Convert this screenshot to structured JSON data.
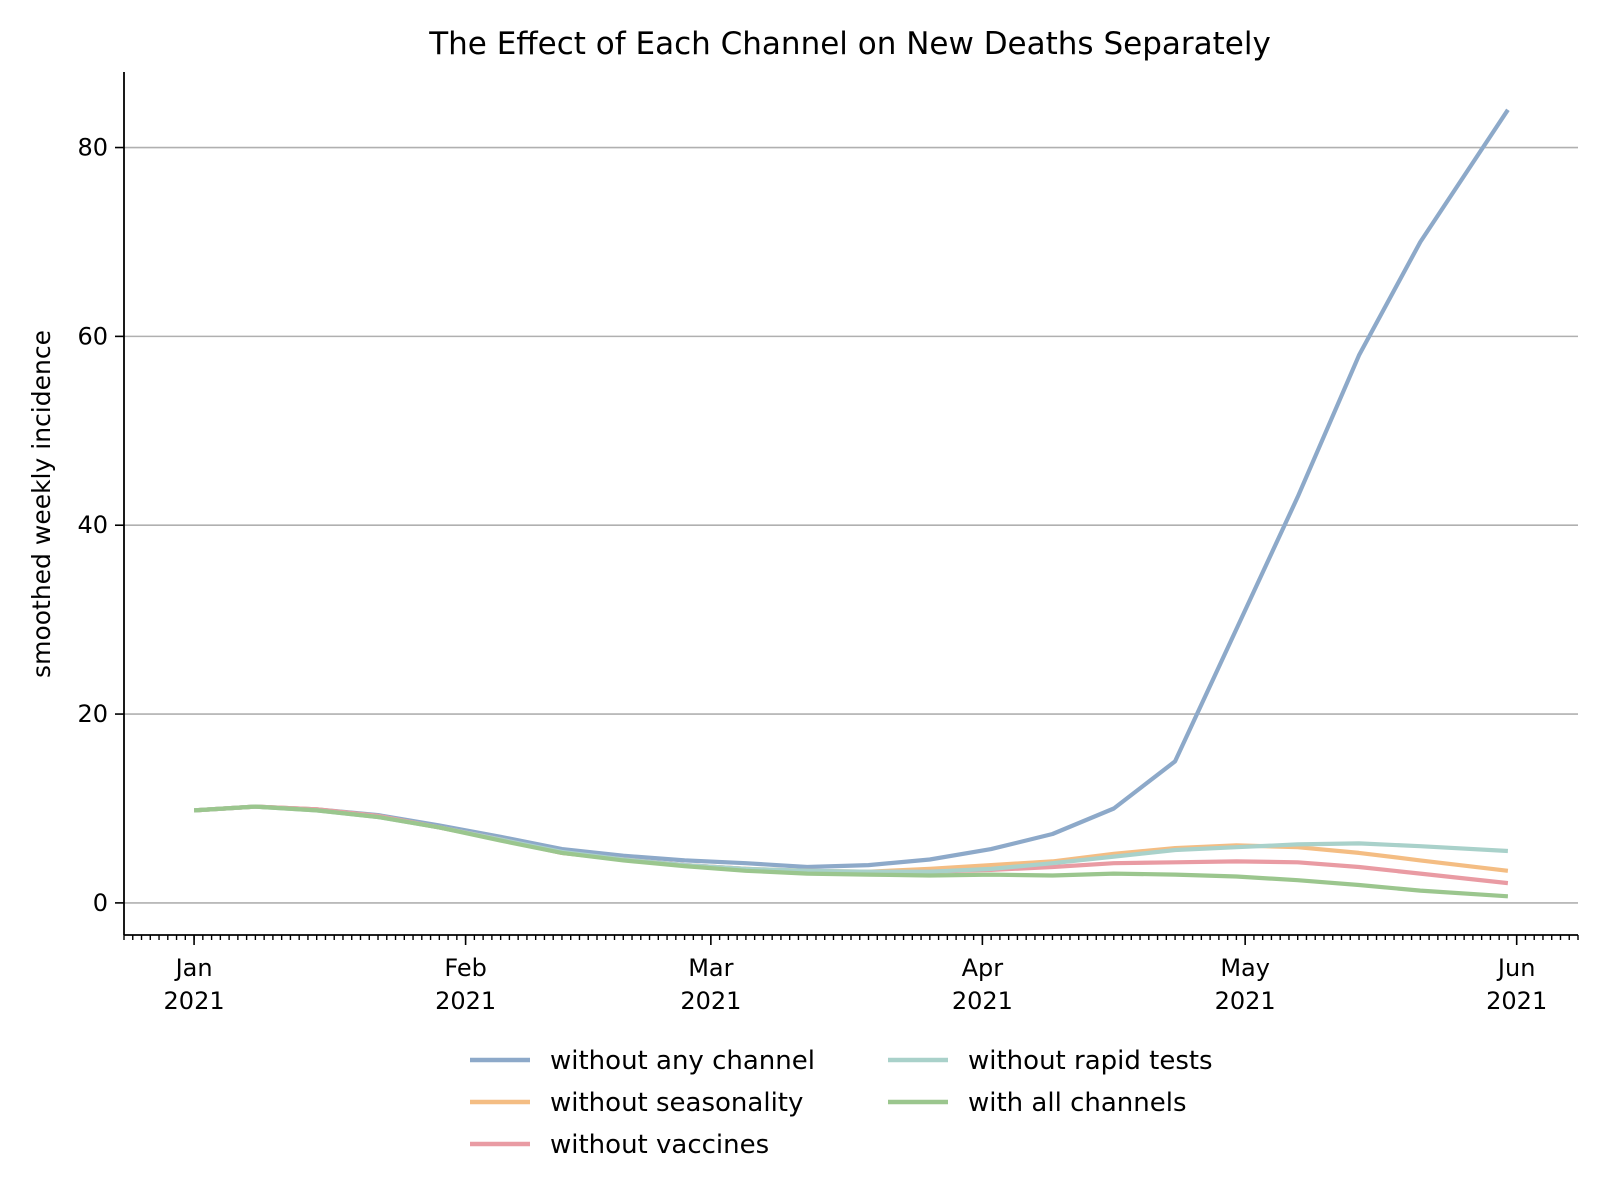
{
  "chart_data": {
    "type": "line",
    "title": "The Effect of Each Channel on New Deaths Separately",
    "xlabel": "",
    "ylabel": "smoothed weekly incidence",
    "ylim": [
      -3.4,
      88
    ],
    "yticks": [
      0,
      20,
      40,
      60,
      80
    ],
    "xlim": [
      "2020-12-24",
      "2021-06-08"
    ],
    "xticks": [
      {
        "date": "2021-01-01",
        "month": "Jan",
        "year": "2021"
      },
      {
        "date": "2021-02-01",
        "month": "Feb",
        "year": "2021"
      },
      {
        "date": "2021-03-01",
        "month": "Mar",
        "year": "2021"
      },
      {
        "date": "2021-04-01",
        "month": "Apr",
        "year": "2021"
      },
      {
        "date": "2021-05-01",
        "month": "May",
        "year": "2021"
      },
      {
        "date": "2021-06-01",
        "month": "Jun",
        "year": "2021"
      }
    ],
    "grid": "y",
    "legend_position": "bottom-center",
    "x": [
      "2021-01-01",
      "2021-01-08",
      "2021-01-15",
      "2021-01-22",
      "2021-01-29",
      "2021-02-05",
      "2021-02-12",
      "2021-02-19",
      "2021-02-26",
      "2021-03-05",
      "2021-03-12",
      "2021-03-19",
      "2021-03-26",
      "2021-04-02",
      "2021-04-09",
      "2021-04-16",
      "2021-04-23",
      "2021-04-30",
      "2021-05-07",
      "2021-05-14",
      "2021-05-21",
      "2021-05-31"
    ],
    "series": [
      {
        "name": "without any channel",
        "color": "#8da9c9",
        "values": [
          9.8,
          10.2,
          9.9,
          9.3,
          8.2,
          7.0,
          5.7,
          5.0,
          4.5,
          4.2,
          3.8,
          4.0,
          4.6,
          5.7,
          7.3,
          10.0,
          15.0,
          29.0,
          43.0,
          58.0,
          70.0,
          84.0
        ]
      },
      {
        "name": "without seasonality",
        "color": "#f4bd83",
        "values": [
          9.8,
          10.2,
          9.9,
          9.2,
          8.0,
          6.7,
          5.3,
          4.6,
          4.0,
          3.6,
          3.4,
          3.3,
          3.6,
          4.0,
          4.4,
          5.2,
          5.8,
          6.1,
          5.9,
          5.3,
          4.5,
          3.4
        ]
      },
      {
        "name": "without vaccines",
        "color": "#e99ba3",
        "values": [
          9.8,
          10.2,
          9.9,
          9.2,
          8.0,
          6.7,
          5.3,
          4.6,
          4.0,
          3.6,
          3.3,
          3.2,
          3.3,
          3.5,
          3.8,
          4.2,
          4.3,
          4.4,
          4.3,
          3.8,
          3.1,
          2.1
        ]
      },
      {
        "name": "without rapid tests",
        "color": "#a9d1ca",
        "values": [
          9.8,
          10.2,
          9.8,
          9.1,
          8.0,
          6.7,
          5.4,
          4.6,
          4.0,
          3.6,
          3.4,
          3.3,
          3.3,
          3.6,
          4.2,
          4.9,
          5.6,
          5.9,
          6.2,
          6.3,
          6.0,
          5.5
        ]
      },
      {
        "name": "with all channels",
        "color": "#9bc68e",
        "values": [
          9.8,
          10.2,
          9.8,
          9.1,
          8.0,
          6.6,
          5.3,
          4.5,
          3.9,
          3.4,
          3.1,
          3.0,
          2.9,
          3.0,
          2.9,
          3.1,
          3.0,
          2.8,
          2.4,
          1.9,
          1.3,
          0.7
        ]
      }
    ]
  }
}
